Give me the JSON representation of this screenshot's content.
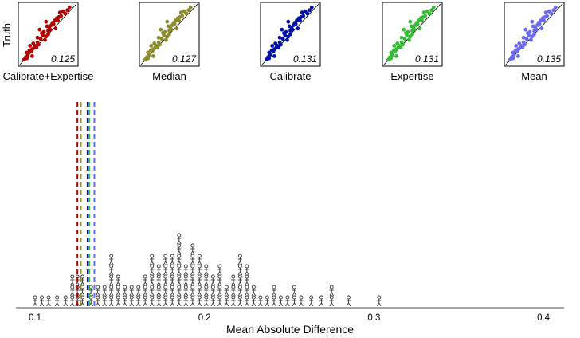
{
  "chart_data": [
    {
      "type": "scatter",
      "ylabel": "Truth",
      "panels": [
        {
          "name": "Calibrate+Expertise",
          "score": "0.125",
          "color": "#b30000"
        },
        {
          "name": "Median",
          "score": "0.127",
          "color": "#8c8c2a"
        },
        {
          "name": "Calibrate",
          "score": "0.131",
          "color": "#0010a8"
        },
        {
          "name": "Expertise",
          "score": "0.131",
          "color": "#33bb33"
        },
        {
          "name": "Mean",
          "score": "0.135",
          "color": "#6b6bf2"
        }
      ],
      "points": [
        [
          0.05,
          0.06
        ],
        [
          0.08,
          0.1
        ],
        [
          0.1,
          0.18
        ],
        [
          0.12,
          0.14
        ],
        [
          0.15,
          0.22
        ],
        [
          0.16,
          0.3
        ],
        [
          0.18,
          0.2
        ],
        [
          0.2,
          0.12
        ],
        [
          0.22,
          0.34
        ],
        [
          0.24,
          0.28
        ],
        [
          0.26,
          0.3
        ],
        [
          0.28,
          0.27
        ],
        [
          0.3,
          0.36
        ],
        [
          0.32,
          0.32
        ],
        [
          0.34,
          0.58
        ],
        [
          0.36,
          0.42
        ],
        [
          0.38,
          0.52
        ],
        [
          0.4,
          0.48
        ],
        [
          0.42,
          0.54
        ],
        [
          0.44,
          0.4
        ],
        [
          0.46,
          0.46
        ],
        [
          0.48,
          0.64
        ],
        [
          0.5,
          0.5
        ],
        [
          0.52,
          0.62
        ],
        [
          0.54,
          0.58
        ],
        [
          0.56,
          0.66
        ],
        [
          0.58,
          0.7
        ],
        [
          0.6,
          0.68
        ],
        [
          0.64,
          0.6
        ],
        [
          0.66,
          0.78
        ],
        [
          0.68,
          0.74
        ],
        [
          0.7,
          0.8
        ],
        [
          0.74,
          0.82
        ],
        [
          0.78,
          0.9
        ],
        [
          0.82,
          0.86
        ],
        [
          0.86,
          0.92
        ],
        [
          0.9,
          0.97
        ],
        [
          0.1,
          0.08
        ],
        [
          0.2,
          0.24
        ],
        [
          0.3,
          0.44
        ],
        [
          0.5,
          0.56
        ],
        [
          0.62,
          0.74
        ],
        [
          0.72,
          0.88
        ],
        [
          0.46,
          0.72
        ]
      ]
    },
    {
      "type": "histogram",
      "xlabel": "Mean Absolute Difference",
      "xlim": [
        0.08,
        0.42
      ],
      "xticks": [
        "0.1",
        "0.2",
        "0.3",
        "0.4"
      ],
      "methods": [
        {
          "name": "Calibrate+Expertise",
          "value": 0.125,
          "color": "#b30000"
        },
        {
          "name": "Median",
          "value": 0.127,
          "color": "#8c8c2a"
        },
        {
          "name": "Calibrate",
          "value": 0.131,
          "color": "#0010a8"
        },
        {
          "name": "Expertise",
          "value": 0.131,
          "color": "#33bb33"
        },
        {
          "name": "Mean",
          "value": 0.135,
          "color": "#6b6bf2"
        }
      ],
      "individuals": [
        {
          "x": 0.1,
          "count": 1
        },
        {
          "x": 0.104,
          "count": 1
        },
        {
          "x": 0.108,
          "count": 1
        },
        {
          "x": 0.113,
          "count": 1
        },
        {
          "x": 0.118,
          "count": 1
        },
        {
          "x": 0.122,
          "count": 3
        },
        {
          "x": 0.125,
          "count": 3
        },
        {
          "x": 0.128,
          "count": 3
        },
        {
          "x": 0.133,
          "count": 2
        },
        {
          "x": 0.137,
          "count": 2
        },
        {
          "x": 0.141,
          "count": 2
        },
        {
          "x": 0.145,
          "count": 5
        },
        {
          "x": 0.149,
          "count": 3
        },
        {
          "x": 0.153,
          "count": 2
        },
        {
          "x": 0.157,
          "count": 2
        },
        {
          "x": 0.161,
          "count": 2
        },
        {
          "x": 0.165,
          "count": 3
        },
        {
          "x": 0.169,
          "count": 5
        },
        {
          "x": 0.173,
          "count": 4
        },
        {
          "x": 0.177,
          "count": 5
        },
        {
          "x": 0.181,
          "count": 5
        },
        {
          "x": 0.185,
          "count": 7
        },
        {
          "x": 0.189,
          "count": 4
        },
        {
          "x": 0.193,
          "count": 6
        },
        {
          "x": 0.197,
          "count": 5
        },
        {
          "x": 0.201,
          "count": 4
        },
        {
          "x": 0.205,
          "count": 3
        },
        {
          "x": 0.209,
          "count": 4
        },
        {
          "x": 0.213,
          "count": 2
        },
        {
          "x": 0.217,
          "count": 3
        },
        {
          "x": 0.221,
          "count": 5
        },
        {
          "x": 0.225,
          "count": 4
        },
        {
          "x": 0.229,
          "count": 2
        },
        {
          "x": 0.233,
          "count": 1
        },
        {
          "x": 0.237,
          "count": 1
        },
        {
          "x": 0.241,
          "count": 2
        },
        {
          "x": 0.245,
          "count": 1
        },
        {
          "x": 0.249,
          "count": 1
        },
        {
          "x": 0.253,
          "count": 2
        },
        {
          "x": 0.257,
          "count": 1
        },
        {
          "x": 0.263,
          "count": 1
        },
        {
          "x": 0.269,
          "count": 1
        },
        {
          "x": 0.275,
          "count": 2
        },
        {
          "x": 0.285,
          "count": 1
        },
        {
          "x": 0.303,
          "count": 1
        }
      ]
    }
  ]
}
